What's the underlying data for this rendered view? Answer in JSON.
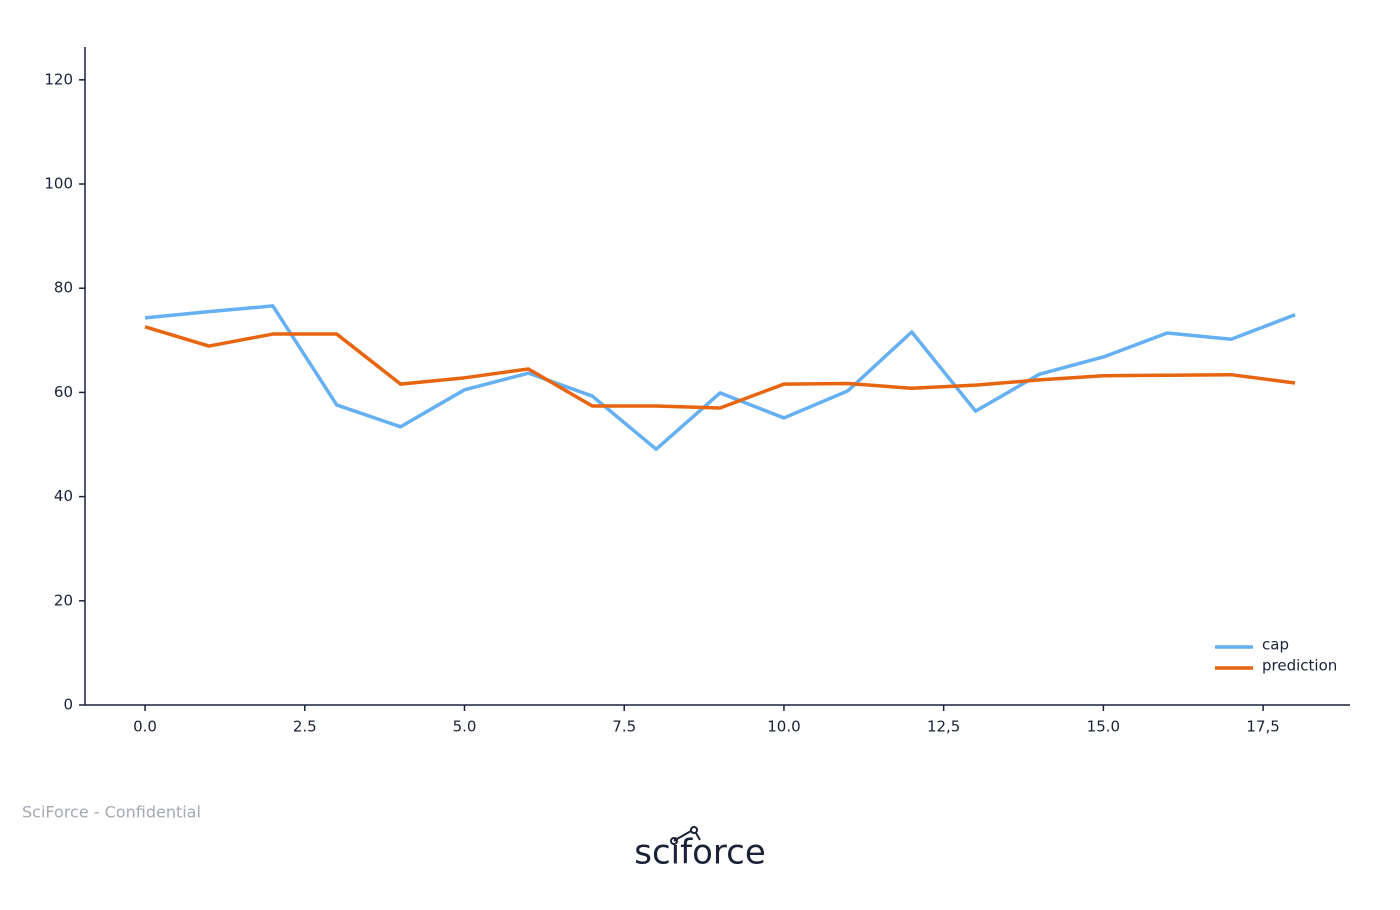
{
  "chart_data": {
    "type": "line",
    "x": [
      0,
      1,
      2,
      3,
      4,
      5,
      6,
      7,
      8,
      9,
      10,
      11,
      12,
      13,
      14,
      15,
      16,
      17,
      18
    ],
    "series": [
      {
        "name": "cap",
        "color": "#64b0f2",
        "values": [
          74.3,
          75.5,
          76.6,
          57.6,
          53.4,
          60.5,
          63.7,
          59.3,
          49.1,
          59.9,
          55.1,
          60.3,
          71.6,
          56.4,
          63.5,
          66.8,
          71.4,
          70.2,
          74.9
        ]
      },
      {
        "name": "prediction",
        "color": "#e8650f",
        "values": [
          72.6,
          68.9,
          71.2,
          71.2,
          61.6,
          62.8,
          64.5,
          57.4,
          57.4,
          57.0,
          61.6,
          61.7,
          60.8,
          61.4,
          62.4,
          63.2,
          63.3,
          63.4,
          61.8
        ]
      }
    ],
    "xlim": [
      -0.94,
      18.86
    ],
    "ylim": [
      0,
      126.3
    ],
    "xticks": [
      {
        "value": 0,
        "label": "0.0"
      },
      2.5,
      {
        "value": 5,
        "label": "5.0"
      },
      7.5,
      {
        "value": 10,
        "label": "10.0"
      },
      {
        "value": 12.5,
        "label": "12,5"
      },
      {
        "value": 15,
        "label": "15.0"
      },
      {
        "value": 17.5,
        "label": "17,5"
      }
    ],
    "yticks": [
      0,
      20,
      40,
      60,
      80,
      100,
      120
    ],
    "legend": "lower right"
  },
  "footer": "SciForce - Confidential",
  "logo": "sciforce"
}
